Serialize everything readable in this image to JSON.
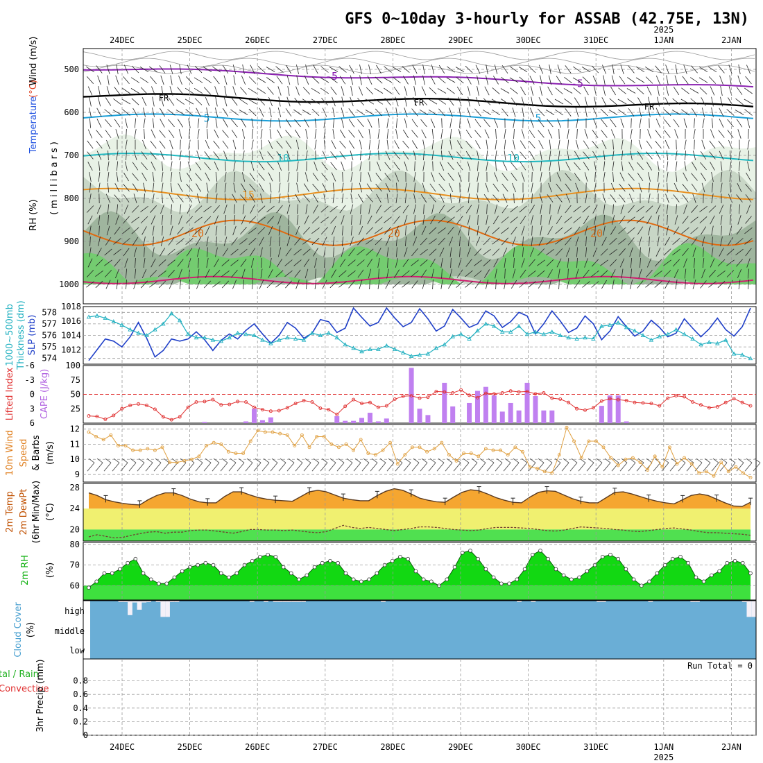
{
  "title": "GFS 0~10day 3-hourly for ASSAB (42.75E, 13N)",
  "dates": [
    "24DEC",
    "25DEC",
    "26DEC",
    "27DEC",
    "28DEC",
    "29DEC",
    "30DEC",
    "31DEC",
    "1JAN",
    "2JAN"
  ],
  "year_label": "2025",
  "colors": {
    "temp_fill": "#f5a630",
    "rh_fill": "#1ed81e",
    "cloud": "#6aaed6",
    "slp": "#1f3fc8",
    "thick": "#20b0c0",
    "cape": "#c080f0",
    "li": "#e03030",
    "wind": "#e0a040",
    "dewpt": "#f0f070",
    "rh_green": "#50e050"
  },
  "panels": {
    "upper": {
      "ylabel": "(millibars)",
      "ylabel_parts": [
        {
          "text": "Temperature",
          "color": "#e04020"
        },
        {
          "text": " (°C)",
          "color": "#e04020"
        },
        {
          "text": "Wind (m/s)",
          "color": "#000000"
        }
      ],
      "rh_label": "RH (%)",
      "temp_label": "Temperature",
      "temp_unit": "(°C)",
      "wind_label": "Wind (m/s)",
      "yticks": [
        "500",
        "600",
        "700",
        "800",
        "900",
        "1000"
      ],
      "isotherm_labels": [
        "-5",
        "FR",
        "5",
        "10",
        "15",
        "20"
      ],
      "rh_labels": [
        "10",
        "30",
        "50"
      ]
    },
    "thick": {
      "label1": "1000~500mb",
      "label2": "Thickness (dm)",
      "label3": "SLP (mb)",
      "yticks_left": [
        "578",
        "577",
        "576",
        "575",
        "574"
      ],
      "yticks_right": [
        "1018",
        "1016",
        "1014",
        "1012"
      ]
    },
    "cape": {
      "label1": "Lifted Index",
      "label2": "CAPE (J/kg)",
      "yticks_left": [
        "-6",
        "-3",
        "0",
        "3",
        "6"
      ],
      "yticks_right": [
        "100",
        "75",
        "50",
        "25"
      ]
    },
    "wind": {
      "label1": "10m Wind",
      "label2": "Speed",
      "label3": "& Barbs",
      "label4": "(m/s)",
      "yticks": [
        "12",
        "11",
        "10",
        "9"
      ]
    },
    "temp": {
      "label1": "2m Temp",
      "label2": "2m DewPt",
      "label3": "(6hr Min/Max)",
      "label4": "(°C)",
      "yticks": [
        "28",
        "24",
        "20"
      ]
    },
    "rh": {
      "label1": "2m RH",
      "label2": "(%)",
      "yticks": [
        "80",
        "70",
        "60"
      ]
    },
    "cloud": {
      "label1": "Cloud Cover",
      "label2": "(%)",
      "yticks": [
        "high",
        "middle",
        "low"
      ]
    },
    "precip": {
      "label1": "tal / Rain",
      "label2": "Convective",
      "label3": "3hr Precip (mm)",
      "yticks": [
        "0.8",
        "0.6",
        "0.4",
        "0.2",
        "0"
      ],
      "run_total": "Run Total = 0"
    }
  },
  "chart_data": [
    {
      "type": "line",
      "panel": "thickness_slp",
      "series": [
        {
          "name": "SLP (mb)",
          "values": [
            1010.5,
            1012,
            1013.5,
            1013.2,
            1012.4,
            1013.8,
            1015.8,
            1013.6,
            1011,
            1011.9,
            1013.5,
            1013.2,
            1013.5,
            1014.5,
            1013.4,
            1011.9,
            1013.3,
            1014.2,
            1013.5,
            1014.7,
            1015.6,
            1014.2,
            1012.9,
            1014,
            1015.8,
            1015,
            1013.6,
            1014.3,
            1016.2,
            1015.9,
            1014.4,
            1015,
            1017.8,
            1016.5,
            1015.3,
            1015.8,
            1017.8,
            1016.4,
            1015.2,
            1015.8,
            1017.7,
            1016.3,
            1014.6,
            1015.3,
            1017.6,
            1016.4,
            1015.1,
            1015.6,
            1017.4,
            1016.7,
            1015.1,
            1015.9,
            1017.2,
            1016.7,
            1014.2,
            1015.6,
            1017.4,
            1016,
            1014.4,
            1015,
            1016.7,
            1015.6,
            1013.4,
            1014.6,
            1016.6,
            1015.2,
            1013.9,
            1014.6,
            1016.1,
            1015.1,
            1013.8,
            1014.3,
            1016.3,
            1015,
            1013.8,
            1014.9,
            1016.4,
            1014.8,
            1013.9,
            1015.2,
            1017.8
          ]
        },
        {
          "name": "Thickness (dm)",
          "values": [
            577.6,
            577.7,
            577.5,
            577.2,
            576.9,
            576.5,
            576.2,
            576,
            576.5,
            577,
            577.9,
            577.3,
            576.1,
            575.8,
            575.8,
            575.6,
            575.5,
            575.8,
            576.2,
            576.1,
            576,
            575.6,
            575.3,
            575.6,
            575.8,
            575.7,
            575.6,
            576.2,
            576,
            576.2,
            575.8,
            575.2,
            574.9,
            574.6,
            574.8,
            574.8,
            575.1,
            574.8,
            574.5,
            574.2,
            574.3,
            574.4,
            574.9,
            575.2,
            575.9,
            576.1,
            575.7,
            576.4,
            577,
            576.8,
            576.3,
            576.3,
            576.8,
            576.1,
            576.3,
            576.1,
            576.3,
            576,
            575.8,
            575.7,
            575.8,
            575.7,
            576.8,
            576.9,
            577.1,
            576.7,
            576.4,
            576,
            575.6,
            575.9,
            576.1,
            576.5,
            576.1,
            575.7,
            575.2,
            575.4,
            575.3,
            575.6,
            574.4,
            574.3,
            574
          ]
        }
      ],
      "ylim_left": [
        573.5,
        578.5
      ],
      "ylim_right": [
        1010,
        1018
      ]
    },
    {
      "type": "bar",
      "panel": "cape_li",
      "series": [
        {
          "name": "CAPE (J/kg)",
          "values": [
            0,
            0,
            0,
            0,
            0,
            0,
            0,
            0,
            0,
            0,
            0,
            0,
            0,
            0,
            2,
            0,
            0,
            0,
            0,
            3,
            25,
            5,
            10,
            0,
            0,
            0,
            0,
            0,
            0,
            0,
            12,
            4,
            4,
            9,
            18,
            3,
            8,
            0,
            0,
            96,
            25,
            14,
            0,
            70,
            29,
            0,
            35,
            56,
            63,
            48,
            20,
            35,
            22,
            70,
            47,
            22,
            22,
            0,
            0,
            0,
            0,
            0,
            30,
            48,
            48,
            3,
            0,
            0,
            0,
            0,
            0,
            0,
            0,
            0,
            0,
            0,
            0,
            0,
            0,
            0,
            0
          ]
        },
        {
          "name": "Lifted Index",
          "values": [
            4.5,
            4.6,
            5.2,
            4.4,
            3,
            2.3,
            2,
            2.3,
            3.1,
            4.7,
            5.3,
            4.7,
            2.7,
            1.6,
            1.5,
            1.1,
            2.2,
            2.1,
            1.5,
            1.6,
            2.7,
            3.2,
            3.5,
            3.4,
            2.8,
            1.9,
            1.3,
            1.6,
            2.9,
            3.2,
            4.2,
            2.5,
            1.1,
            1.9,
            1.7,
            2.7,
            2.4,
            1,
            0.4,
            0.3,
            0.8,
            0.6,
            -0.6,
            -0.5,
            -0.3,
            -0.9,
            0.2,
            0.7,
            -0.2,
            -0.1,
            -0.3,
            -0.7,
            -0.5,
            -0.6,
            -0.1,
            -0.3,
            0.8,
            1,
            1.7,
            3,
            3.3,
            2.8,
            1.4,
            0.9,
            1.1,
            1.3,
            1.7,
            1.8,
            1.9,
            2.4,
            0.8,
            0.3,
            0.5,
            1.6,
            2.2,
            2.8,
            2.6,
            1.7,
            0.9,
            1.7,
            2.4
          ]
        }
      ],
      "ylim_left": [
        -6,
        6
      ],
      "ylim_right": [
        0,
        100
      ]
    },
    {
      "type": "line",
      "panel": "wind10m",
      "series": [
        {
          "name": "Speed (m/s)",
          "values": [
            11.8,
            11.5,
            11.3,
            11.6,
            10.9,
            10.9,
            10.6,
            10.6,
            10.7,
            10.6,
            10.8,
            9.8,
            9.8,
            9.9,
            10,
            10.2,
            10.9,
            11.1,
            11,
            10.5,
            10.4,
            10.4,
            11.2,
            11.9,
            11.8,
            11.8,
            11.7,
            11.6,
            10.9,
            11.6,
            10.8,
            11.5,
            11.5,
            11,
            10.8,
            11,
            10.6,
            11.3,
            10.4,
            10.3,
            10.6,
            11.1,
            9.7,
            10.3,
            10.8,
            10.8,
            10.5,
            10.7,
            11.1,
            10.3,
            9.9,
            10.4,
            10.4,
            10.2,
            10.7,
            10.6,
            10.6,
            10.3,
            10.8,
            10.5,
            9.5,
            9.4,
            9.2,
            9.1,
            10.3,
            12.1,
            11.2,
            10.1,
            11.2,
            11.2,
            10.8,
            10.1,
            9.6,
            10,
            10.1,
            9.8,
            9.3,
            10.2,
            9.5,
            10.8,
            9.7,
            10.1,
            9.7,
            9.1,
            9.2,
            8.9,
            9.8,
            9.2,
            9.5,
            9.1,
            8.8
          ]
        }
      ],
      "ylim": [
        8.5,
        12.3
      ]
    },
    {
      "type": "area",
      "panel": "temp2m",
      "series": [
        {
          "name": "2m Temp (°C)",
          "values": [
            27,
            26.5,
            25.7,
            25.3,
            25,
            24.8,
            24.7,
            25.7,
            26.5,
            27,
            27,
            26.5,
            25.8,
            25.3,
            25.1,
            25.1,
            26.3,
            27.2,
            27.2,
            26.6,
            26.1,
            25.8,
            25.6,
            25.5,
            25.4,
            26.3,
            27.2,
            27.5,
            27.2,
            26.6,
            26,
            25.7,
            25.5,
            25.5,
            26.5,
            27.3,
            27.8,
            27.5,
            26.8,
            26,
            25.6,
            25.3,
            25.2,
            26.2,
            27.1,
            27.6,
            27.4,
            26.8,
            26.1,
            25.6,
            25.2,
            25.1,
            26.2,
            27.1,
            27.4,
            27.3,
            26.6,
            25.9,
            25.4,
            25.1,
            25.1,
            26.1,
            27.1,
            27.2,
            26.8,
            26.3,
            25.8,
            25.4,
            25.1,
            24.9,
            25.7,
            26.5,
            26.8,
            26.5,
            25.8,
            25.1,
            24.5,
            24.4,
            25.2
          ]
        },
        {
          "name": "2m DewPt (°C)",
          "values": [
            18.6,
            19,
            18.7,
            18.4,
            18.5,
            18.9,
            19.2,
            19.5,
            19.6,
            19.3,
            19.5,
            19.5,
            19.8,
            19.9,
            19.9,
            19.7,
            19.5,
            19.3,
            19.6,
            20,
            20,
            19.9,
            19.9,
            19.8,
            19.9,
            19.7,
            19.5,
            19.4,
            19.6,
            20.2,
            20.8,
            20.4,
            20.2,
            20.4,
            20.2,
            20,
            19.8,
            20,
            20.2,
            20.5,
            20.5,
            20.4,
            20.2,
            20,
            19.9,
            19.8,
            19.9,
            20.2,
            20.4,
            20.4,
            20.4,
            20.3,
            20.2,
            20,
            19.8,
            19.7,
            19.9,
            20.2,
            20.5,
            20.4,
            20.3,
            20.2,
            20,
            19.9,
            19.7,
            19.6,
            19.8,
            20,
            20.2,
            20.3,
            20.1,
            19.9,
            19.6,
            19.4,
            19.4,
            19.3,
            19.2,
            19.1,
            18.9
          ]
        }
      ],
      "ylim": [
        17.8,
        28.8
      ]
    },
    {
      "type": "area",
      "panel": "rh2m",
      "series": [
        {
          "name": "2m RH (%)",
          "values": [
            59,
            62,
            66,
            66,
            68,
            71,
            73,
            66,
            63,
            61,
            61,
            64,
            67,
            69,
            70,
            71,
            70,
            66,
            64,
            66,
            70,
            72,
            74,
            75,
            74,
            69,
            66,
            63,
            65,
            69,
            71,
            72,
            71,
            66,
            63,
            62,
            63,
            66,
            70,
            72,
            74,
            73,
            67,
            63,
            62,
            60,
            63,
            69,
            76,
            77,
            73,
            68,
            64,
            61,
            61,
            63,
            68,
            75,
            77,
            73,
            68,
            65,
            63,
            64,
            67,
            70,
            74,
            75,
            73,
            68,
            63,
            60,
            62,
            66,
            70,
            73,
            74,
            71,
            64,
            62,
            65,
            67,
            71,
            72,
            71,
            66
          ]
        }
      ],
      "ylim": [
        53,
        81
      ]
    },
    {
      "type": "bar",
      "panel": "cloud",
      "series": [
        {
          "name": "high",
          "values": [
            0,
            0,
            0,
            0,
            0,
            0,
            2,
            2,
            80,
            10,
            50,
            10,
            2,
            0,
            2,
            90,
            90,
            5,
            5,
            0,
            0,
            0,
            0,
            0,
            0,
            0,
            0,
            0,
            0,
            0,
            0,
            0,
            0,
            0,
            2,
            0,
            0,
            2,
            0,
            2,
            2,
            2,
            2,
            2,
            2,
            2,
            0,
            0,
            0,
            0,
            0,
            0,
            0,
            0,
            0,
            0,
            0,
            0,
            0,
            0,
            0,
            0,
            2,
            0,
            0,
            0,
            0,
            0,
            0,
            0,
            0,
            0,
            0,
            0,
            0,
            0,
            0,
            0,
            0,
            0,
            0,
            0,
            0,
            0,
            0,
            0,
            0,
            0,
            0,
            0,
            0,
            2,
            0,
            0,
            2,
            0,
            0,
            0,
            0,
            0,
            0,
            0,
            0,
            0,
            0,
            0,
            0,
            0,
            2,
            2,
            0,
            0,
            0,
            0,
            0,
            0,
            0,
            0,
            0,
            2,
            0,
            0,
            0,
            0,
            0,
            0,
            0,
            0,
            2,
            2,
            0,
            0,
            0,
            0,
            0,
            0,
            0,
            0,
            0,
            2,
            90,
            90
          ]
        }
      ]
    },
    {
      "type": "bar",
      "panel": "precip",
      "series": [
        {
          "name": "3hr Precip (mm)",
          "values": [
            0
          ]
        }
      ],
      "ylim": [
        0,
        1
      ]
    }
  ]
}
